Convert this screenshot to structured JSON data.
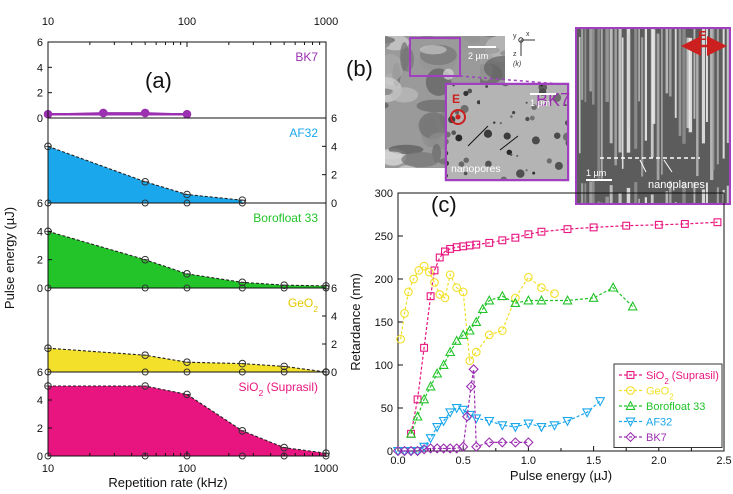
{
  "panel_labels": {
    "a": "(a)",
    "b": "(b)",
    "c": "(c)"
  },
  "panel_a": {
    "ylabel": "Pulse energy (µJ)",
    "xlabel": "Repetition rate (kHz)",
    "top_ticks": [
      "10",
      "100",
      "1000"
    ],
    "bottom_ticks": [
      "10",
      "100",
      "1000"
    ],
    "left_ticks_bk7": [
      "6",
      "4",
      "2",
      "0"
    ],
    "right_ticks_af32": [
      "6",
      "4",
      "2",
      "0"
    ],
    "left_ticks_boro": [
      "6",
      "4",
      "2",
      "0"
    ],
    "right_ticks_geo2": [
      "6",
      "4",
      "2",
      "0"
    ],
    "left_ticks_sio2": [
      "6",
      "4",
      "2",
      "0"
    ]
  },
  "panel_b": {
    "material": "BK7",
    "scale_2um": "2 µm",
    "scale_1um_inset": "1 µm",
    "scale_1um_right": "1 µm",
    "E_label": "E",
    "E_label_right": "E",
    "nanopores": "nanopores",
    "nanoplanes": "nanoplanes",
    "axis_y": "y",
    "axis_x": "x",
    "axis_z": "z",
    "axis_k": "(k)"
  },
  "colors": {
    "bk7": "#9b30b0",
    "af32": "#1aa7ec",
    "boro": "#22c42a",
    "geo2": "#f2e02a",
    "sio2": "#e8147f",
    "frame_purple": "#a040c0",
    "E_red": "#cc1f1f"
  },
  "chart_data": [
    {
      "type": "area",
      "log_x": true,
      "xlim": [
        10,
        1000
      ],
      "ylim": [
        0,
        6
      ],
      "series": [
        {
          "name": "BK7",
          "x": [
            10,
            25,
            50,
            100
          ],
          "values": [
            0.3,
            0.4,
            0.4,
            0.3
          ]
        },
        {
          "name": "AF32",
          "x": [
            10,
            50,
            100,
            250
          ],
          "values": [
            4.0,
            1.5,
            0.6,
            0.2
          ]
        },
        {
          "name": "Borofloat 33",
          "x": [
            10,
            50,
            100,
            250,
            500,
            1000
          ],
          "values": [
            4.0,
            2.0,
            1.0,
            0.4,
            0.2,
            0.15
          ]
        },
        {
          "name": "GeO",
          "name_sub": "2",
          "x": [
            10,
            50,
            100,
            250,
            500,
            1000
          ],
          "values": [
            1.7,
            1.2,
            0.7,
            0.6,
            0.4,
            0.0
          ]
        },
        {
          "name": "SiO",
          "name_sub": "2",
          "name_tail": " (Suprasil)",
          "x": [
            10,
            50,
            100,
            250,
            500,
            1000
          ],
          "values": [
            5.0,
            5.0,
            4.4,
            1.8,
            0.6,
            0.2
          ]
        }
      ]
    },
    {
      "type": "line",
      "xlabel": "Pulse energy (µJ)",
      "ylabel": "Retardance (nm)",
      "xlim": [
        0,
        2.5
      ],
      "ylim": [
        0,
        300
      ],
      "xticks": [
        "0.0",
        "0.5",
        "1.0",
        "1.5",
        "2.0",
        "2.5"
      ],
      "yticks": [
        "0",
        "50",
        "100",
        "150",
        "200",
        "250",
        "300"
      ],
      "legend_position": "bottom-right",
      "series": [
        {
          "name": "SiO",
          "name_sub": "2",
          "name_tail": " (Suprasil)",
          "marker": "square",
          "x": [
            0.1,
            0.15,
            0.2,
            0.25,
            0.28,
            0.32,
            0.36,
            0.4,
            0.45,
            0.5,
            0.55,
            0.6,
            0.7,
            0.8,
            0.9,
            1.0,
            1.1,
            1.3,
            1.5,
            1.75,
            2.0,
            2.2,
            2.45
          ],
          "values": [
            20,
            60,
            120,
            180,
            210,
            225,
            232,
            235,
            237,
            238,
            239,
            240,
            242,
            245,
            248,
            252,
            255,
            258,
            260,
            262,
            263,
            264,
            266
          ]
        },
        {
          "name": "GeO",
          "name_sub": "2",
          "marker": "circle",
          "x": [
            0.02,
            0.05,
            0.08,
            0.12,
            0.16,
            0.2,
            0.24,
            0.28,
            0.32,
            0.36,
            0.4,
            0.45,
            0.5,
            0.55,
            0.6,
            0.7,
            0.8,
            0.9,
            1.0,
            1.1,
            1.2
          ],
          "values": [
            130,
            160,
            185,
            200,
            210,
            215,
            208,
            196,
            182,
            178,
            205,
            190,
            185,
            105,
            115,
            135,
            140,
            178,
            202,
            190,
            183
          ]
        },
        {
          "name": "Borofloat 33",
          "marker": "triangle-up",
          "x": [
            0.1,
            0.15,
            0.2,
            0.25,
            0.3,
            0.35,
            0.4,
            0.45,
            0.5,
            0.55,
            0.6,
            0.65,
            0.7,
            0.8,
            0.9,
            1.0,
            1.1,
            1.3,
            1.5,
            1.65,
            1.8
          ],
          "values": [
            20,
            40,
            60,
            75,
            90,
            100,
            115,
            128,
            135,
            140,
            150,
            165,
            175,
            180,
            172,
            175,
            175,
            175,
            178,
            190,
            168
          ]
        },
        {
          "name": "AF32",
          "marker": "triangle-down",
          "x": [
            0.0,
            0.05,
            0.1,
            0.15,
            0.2,
            0.25,
            0.3,
            0.35,
            0.4,
            0.45,
            0.5,
            0.55,
            0.6,
            0.7,
            0.8,
            0.9,
            1.0,
            1.1,
            1.2,
            1.3,
            1.45,
            1.55
          ],
          "values": [
            0,
            0,
            0,
            0,
            5,
            15,
            28,
            35,
            45,
            50,
            48,
            42,
            38,
            35,
            30,
            28,
            32,
            28,
            30,
            35,
            45,
            58
          ]
        },
        {
          "name": "BK7",
          "marker": "diamond",
          "x": [
            0.0,
            0.05,
            0.1,
            0.15,
            0.2,
            0.25,
            0.3,
            0.35,
            0.4,
            0.45,
            0.5,
            0.53,
            0.56,
            0.58,
            0.6,
            0.7,
            0.8,
            0.9,
            1.0
          ],
          "values": [
            0,
            0,
            0,
            0,
            2,
            3,
            3,
            3,
            3,
            3,
            5,
            40,
            75,
            95,
            5,
            10,
            10,
            10,
            10
          ]
        }
      ]
    }
  ]
}
